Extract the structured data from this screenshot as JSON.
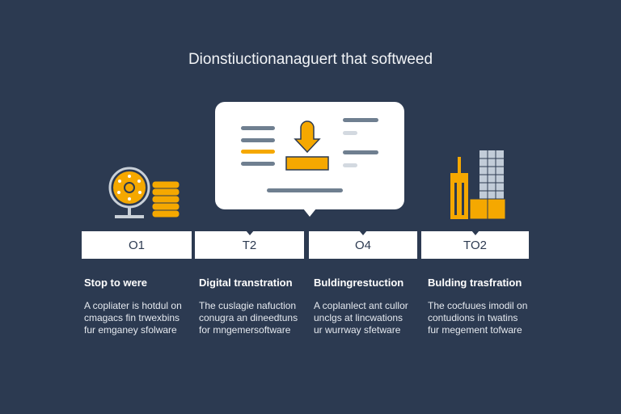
{
  "title": "Dionstiuctionanaguert that softweed",
  "colors": {
    "background": "#2c3a51",
    "accent": "#f5a800",
    "card": "#ffffff"
  },
  "center_card": {
    "icon": "download-arrow-icon"
  },
  "steps": [
    {
      "label": "O1",
      "heading": "Stop to were",
      "lines": [
        "A copliater is hotdul on",
        "cmagacs fin trwexbins",
        "fur emganey sfolware"
      ],
      "icon": "globe-coins-icon"
    },
    {
      "label": "T2",
      "heading": "Digital transtration",
      "lines": [
        "The cuslagie nafuction",
        "conugra an dineedtuns",
        "for mngemersoftware"
      ]
    },
    {
      "label": "O4",
      "heading": "Buldingrestuction",
      "lines": [
        "A coplanlect ant cullor",
        "unclgs at lincwations",
        "ur wurrway sfetware"
      ]
    },
    {
      "label": "TO2",
      "heading": "Bulding trasfration",
      "lines": [
        "The cocfuues imodil on",
        "contudions in twatins",
        "fur megement tofware"
      ],
      "icon": "buildings-icon"
    }
  ]
}
